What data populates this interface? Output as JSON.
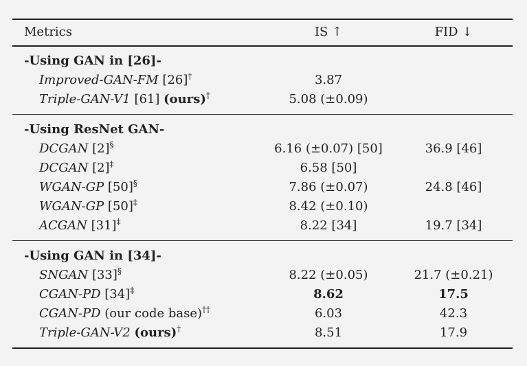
{
  "table": {
    "header": [
      "Metrics",
      "IS ↑",
      "FID ↓"
    ],
    "groups": [
      {
        "title": "-Using GAN in [26]-",
        "rows": [
          {
            "method": [
              {
                "text": "Improved-GAN-FM",
                "style": "italic"
              },
              {
                "text": " [26]"
              },
              {
                "text": "†",
                "style": "sup"
              }
            ],
            "is": "3.87"
          },
          {
            "method": [
              {
                "text": "Triple-GAN-V1",
                "style": "italic"
              },
              {
                "text": " [61] "
              },
              {
                "text": "(ours)",
                "style": "bold"
              },
              {
                "text": "†",
                "style": "sup"
              }
            ],
            "is": "5.08 (±0.09)"
          }
        ]
      },
      {
        "title": "-Using ResNet GAN-",
        "rows": [
          {
            "method": [
              {
                "text": "DCGAN",
                "style": "italic"
              },
              {
                "text": " [2]"
              },
              {
                "text": "§",
                "style": "sup"
              }
            ],
            "is": "6.16 (±0.07) [50]",
            "fid": "36.9 [46]"
          },
          {
            "method": [
              {
                "text": "DCGAN",
                "style": "italic"
              },
              {
                "text": " [2]"
              },
              {
                "text": "‡",
                "style": "sup"
              }
            ],
            "is": "6.58 [50]"
          },
          {
            "method": [
              {
                "text": "WGAN-GP",
                "style": "italic"
              },
              {
                "text": " [50]"
              },
              {
                "text": "§",
                "style": "sup"
              }
            ],
            "is": "7.86 (±0.07)",
            "fid": "24.8 [46]"
          },
          {
            "method": [
              {
                "text": "WGAN-GP",
                "style": "italic"
              },
              {
                "text": " [50]"
              },
              {
                "text": "‡",
                "style": "sup"
              }
            ],
            "is": "8.42 (±0.10)"
          },
          {
            "method": [
              {
                "text": "ACGAN",
                "style": "italic"
              },
              {
                "text": " [31]"
              },
              {
                "text": "‡",
                "style": "sup"
              }
            ],
            "is": "8.22 [34]",
            "fid": "19.7 [34]"
          }
        ]
      },
      {
        "title": "-Using GAN in [34]-",
        "rows": [
          {
            "method": [
              {
                "text": "SNGAN",
                "style": "italic"
              },
              {
                "text": " [33]"
              },
              {
                "text": "§",
                "style": "sup"
              }
            ],
            "is": "8.22 (±0.05)",
            "fid": "21.7 (±0.21)"
          },
          {
            "method": [
              {
                "text": "CGAN-PD",
                "style": "italic"
              },
              {
                "text": " [34]"
              },
              {
                "text": "‡",
                "style": "sup"
              }
            ],
            "is": "8.62",
            "fid": "17.5",
            "bold": true
          },
          {
            "method": [
              {
                "text": "CGAN-PD",
                "style": "italic"
              },
              {
                "text": " (our code base)"
              },
              {
                "text": "††",
                "style": "sup"
              }
            ],
            "is": "6.03",
            "fid": "42.3"
          },
          {
            "method": [
              {
                "text": "Triple-GAN-V2",
                "style": "italic"
              },
              {
                "text": " "
              },
              {
                "text": "(ours)",
                "style": "bold"
              },
              {
                "text": "†",
                "style": "sup"
              }
            ],
            "is": "8.51",
            "fid": "17.9"
          }
        ]
      }
    ]
  }
}
